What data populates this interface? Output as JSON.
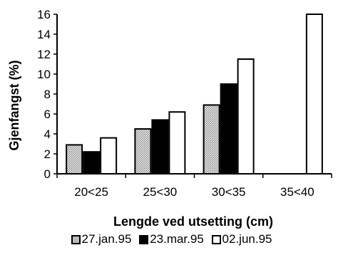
{
  "chart_data": {
    "type": "bar",
    "categories": [
      "20<25",
      "25<30",
      "30<35",
      "35<40"
    ],
    "series": [
      {
        "name": "27.jan.95",
        "values": [
          2.9,
          4.5,
          6.9,
          null
        ],
        "color": "#c4c4c4"
      },
      {
        "name": "23.mar.95",
        "values": [
          2.2,
          5.4,
          9.0,
          null
        ],
        "color": "#000000"
      },
      {
        "name": "02.jun.95",
        "values": [
          3.6,
          6.2,
          11.5,
          16.0
        ],
        "color": "#ffffff"
      }
    ],
    "xlabel": "Lengde ved utsetting (cm)",
    "ylabel": "Gjenfangst (%)",
    "ylim": [
      0,
      16
    ],
    "yticks": [
      0,
      2,
      4,
      6,
      8,
      10,
      12,
      14,
      16
    ],
    "grid": false,
    "legend_position": "bottom"
  }
}
